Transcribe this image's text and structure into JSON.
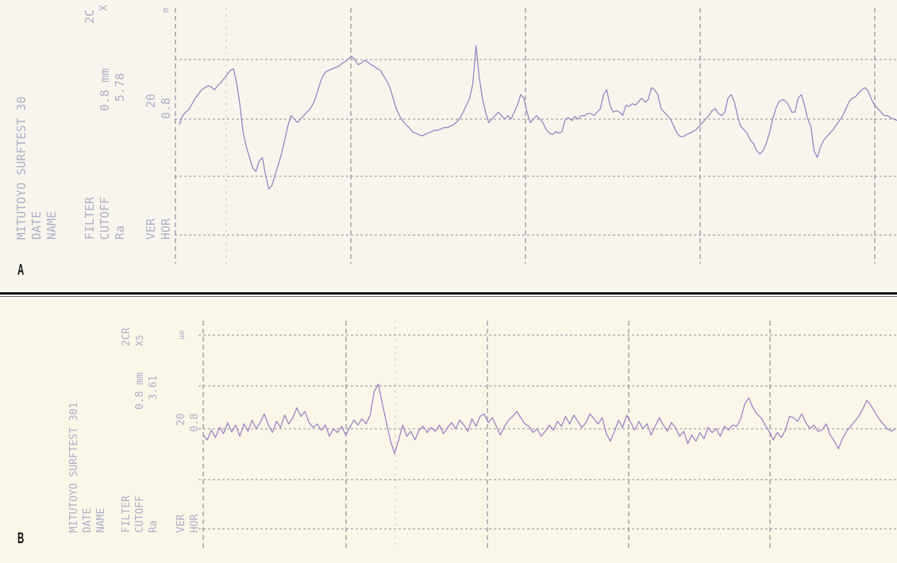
{
  "colors": {
    "trace": "#9b84c4",
    "grid": "#8e8e9e",
    "header_text": "#b0aec8",
    "panel_a_bg": "#f8f6ec",
    "panel_b_bg": "#faf7e9"
  },
  "panels": [
    {
      "label": "A",
      "header": {
        "instrument": "MITUTOYO SURFTEST 30",
        "date": "DATE",
        "name": "NAME",
        "filter": "FILTER",
        "cutoff": "CUTOFF",
        "ra": "Ra",
        "ver": "VER",
        "hor": "HOR",
        "col2_top": "2C",
        "col2_cutoff": "0.8 mm",
        "col2_ra": "5.78",
        "col2_ver": "20",
        "col2_hor": "0.8",
        "col3_top": "X",
        "col3_unit": "m"
      }
    },
    {
      "label": "B",
      "header": {
        "instrument": "MITUTOYO SURFTEST 301",
        "date": "DATE",
        "name": "NAME",
        "filter": "FILTER",
        "cutoff": "CUTOFF",
        "ra": "Ra",
        "ver": "VER",
        "hor": "HOR",
        "col2_top": "2CR",
        "col2_cutoff": "0.8 mm",
        "col2_ra": "3.61",
        "col2_ver": "20",
        "col2_hor": "0.8",
        "col3_top": "X5",
        "col3_unit": "um"
      }
    }
  ],
  "chart_data": [
    {
      "type": "line",
      "title": "",
      "Ra": 5.78,
      "x_range": [
        0,
        890
      ],
      "y_range": [
        -1,
        1
      ],
      "series": [
        {
          "y": [
            -0.08,
            0.05,
            0.1,
            0.14,
            0.22,
            0.3,
            0.36,
            0.42,
            0.45,
            0.48,
            0.46,
            0.42,
            0.48,
            0.52,
            0.58,
            0.64,
            0.7,
            0.72,
            0.5,
            0.2,
            -0.2,
            -0.4,
            -0.55,
            -0.7,
            -0.75,
            -0.6,
            -0.55,
            -0.8,
            -1.0,
            -0.95,
            -0.8,
            -0.65,
            -0.5,
            -0.3,
            -0.1,
            0.05,
            0.0,
            -0.05,
            0.0,
            0.05,
            0.1,
            0.15,
            0.22,
            0.35,
            0.5,
            0.62,
            0.68,
            0.7,
            0.72,
            0.74,
            0.76,
            0.8,
            0.82,
            0.86,
            0.9,
            0.85,
            0.78,
            0.8,
            0.84,
            0.82,
            0.78,
            0.76,
            0.72,
            0.7,
            0.62,
            0.55,
            0.45,
            0.3,
            0.15,
            0.05,
            -0.02,
            -0.08,
            -0.12,
            -0.18,
            -0.2,
            -0.22,
            -0.24,
            -0.22,
            -0.2,
            -0.18,
            -0.16,
            -0.16,
            -0.14,
            -0.12,
            -0.12,
            -0.1,
            -0.08,
            -0.04,
            0.02,
            0.1,
            0.2,
            0.3,
            0.5,
            1.05,
            0.6,
            0.3,
            0.1,
            -0.05,
            0.0,
            0.05,
            0.1,
            0.05,
            0.0,
            0.05,
            0.0,
            0.1,
            0.2,
            0.35,
            0.3,
            0.1,
            -0.05,
            0.0,
            0.05,
            0.0,
            -0.05,
            -0.15,
            -0.2,
            -0.22,
            -0.18,
            -0.2,
            -0.18,
            0.0,
            0.02,
            -0.02,
            0.04,
            0.0,
            0.05,
            0.05,
            0.08,
            0.08,
            0.05,
            0.1,
            0.15,
            0.35,
            0.42,
            0.2,
            0.1,
            0.12,
            0.1,
            0.05,
            0.2,
            0.18,
            0.22,
            0.2,
            0.25,
            0.3,
            0.24,
            0.28,
            0.45,
            0.42,
            0.35,
            0.15,
            0.1,
            0.05,
            0.0,
            -0.1,
            -0.2,
            -0.25,
            -0.25,
            -0.22,
            -0.2,
            -0.18,
            -0.15,
            -0.1,
            -0.05,
            0.0,
            0.05,
            0.12,
            0.15,
            0.08,
            0.05,
            0.1,
            0.3,
            0.35,
            0.25,
            0.05,
            -0.1,
            -0.15,
            -0.2,
            -0.3,
            -0.35,
            -0.45,
            -0.5,
            -0.45,
            -0.35,
            -0.2,
            0.0,
            0.15,
            0.25,
            0.28,
            0.26,
            0.2,
            0.1,
            0.1,
            0.3,
            0.35,
            0.2,
            0.0,
            -0.1,
            -0.45,
            -0.55,
            -0.4,
            -0.3,
            -0.25,
            -0.2,
            -0.15,
            -0.08,
            -0.02,
            0.05,
            0.15,
            0.25,
            0.3,
            0.32,
            0.38,
            0.42,
            0.45,
            0.4,
            0.28,
            0.2,
            0.15,
            0.1,
            0.05,
            0.05,
            0.02,
            0.0,
            -0.02
          ]
        }
      ]
    },
    {
      "type": "line",
      "title": "",
      "Ra": 3.61,
      "x_range": [
        0,
        875
      ],
      "y_range": [
        -1,
        1
      ],
      "series": [
        {
          "y": [
            -0.1,
            -0.18,
            -0.02,
            -0.14,
            0.02,
            -0.08,
            0.1,
            -0.05,
            0.06,
            -0.12,
            0.08,
            -0.04,
            0.14,
            0.0,
            0.1,
            0.24,
            0.06,
            -0.06,
            0.12,
            0.02,
            0.22,
            0.08,
            0.18,
            0.34,
            0.2,
            0.28,
            0.1,
            0.02,
            0.08,
            -0.02,
            0.06,
            -0.12,
            0.0,
            -0.06,
            0.04,
            -0.1,
            0.02,
            0.14,
            0.06,
            0.16,
            0.08,
            0.22,
            0.6,
            0.72,
            0.4,
            0.1,
            -0.2,
            -0.4,
            -0.18,
            0.06,
            -0.12,
            -0.04,
            -0.18,
            -0.02,
            0.04,
            -0.06,
            0.02,
            -0.04,
            0.06,
            -0.08,
            0.02,
            0.1,
            0.0,
            0.14,
            0.06,
            -0.04,
            0.16,
            0.04,
            0.2,
            0.24,
            0.1,
            0.18,
            0.04,
            -0.1,
            0.04,
            0.14,
            0.2,
            0.28,
            0.18,
            0.08,
            0.04,
            -0.06,
            0.0,
            -0.12,
            -0.04,
            0.06,
            -0.02,
            0.12,
            0.04,
            0.2,
            0.08,
            0.22,
            0.12,
            0.02,
            0.1,
            0.24,
            0.16,
            0.08,
            0.18,
            -0.08,
            -0.2,
            -0.04,
            0.14,
            0.02,
            0.22,
            0.1,
            -0.02,
            0.12,
            0.0,
            0.08,
            -0.1,
            0.04,
            0.18,
            0.06,
            -0.04,
            0.1,
            0.02,
            -0.12,
            -0.04,
            -0.24,
            -0.1,
            -0.2,
            -0.06,
            -0.16,
            0.02,
            -0.06,
            0.0,
            -0.12,
            0.04,
            -0.02,
            0.06,
            0.04,
            0.16,
            0.4,
            0.5,
            0.34,
            0.24,
            0.18,
            0.06,
            -0.04,
            -0.18,
            -0.06,
            -0.14,
            -0.02,
            0.2,
            0.18,
            0.12,
            0.24,
            0.1,
            0.0,
            0.06,
            -0.04,
            -0.02,
            0.08,
            -0.1,
            -0.2,
            -0.32,
            -0.16,
            -0.04,
            0.04,
            0.12,
            0.2,
            0.32,
            0.46,
            0.38,
            0.26,
            0.16,
            0.08,
            0.0,
            -0.04,
            0.0
          ]
        }
      ]
    }
  ]
}
